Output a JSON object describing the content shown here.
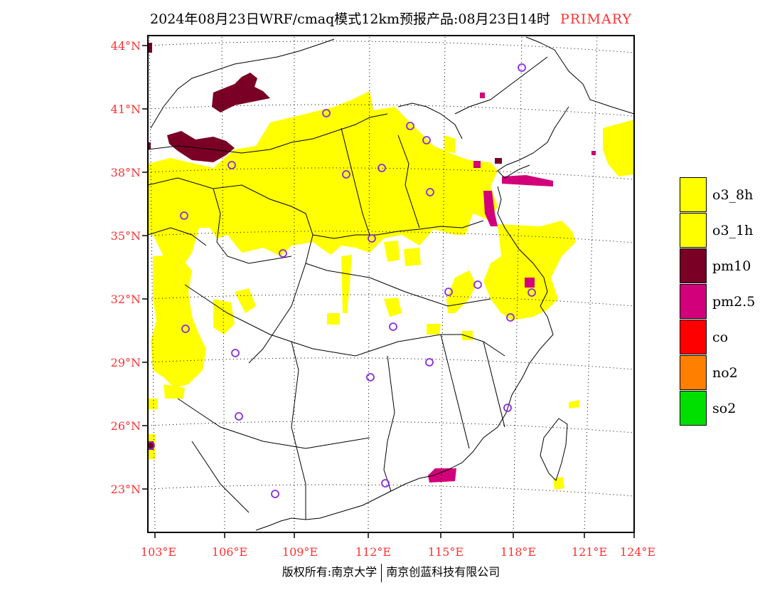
{
  "title": {
    "text": "2024年08月23日WRF/cmaq模式12km预报产品:08月23日14时",
    "tag": "PRIMARY"
  },
  "axes": {
    "lat_labels": [
      "44°N",
      "41°N",
      "38°N",
      "35°N",
      "32°N",
      "29°N",
      "26°N",
      "23°N"
    ],
    "lon_labels": [
      "103°E",
      "106°E",
      "109°E",
      "112°E",
      "115°E",
      "118°E",
      "121°E",
      "124°E"
    ]
  },
  "legend": {
    "items": [
      {
        "label": "o3_8h",
        "color": "#ffff00"
      },
      {
        "label": "o3_1h",
        "color": "#ffff00"
      },
      {
        "label": "pm10",
        "color": "#7a0026"
      },
      {
        "label": "pm2.5",
        "color": "#d2007a"
      },
      {
        "label": "co",
        "color": "#ff0000"
      },
      {
        "label": "no2",
        "color": "#ff7f00"
      },
      {
        "label": "so2",
        "color": "#00e000"
      }
    ]
  },
  "colors": {
    "ozone": "#ffff00",
    "pm10": "#7a0026",
    "pm25": "#d2007a",
    "station_marker": "#8a2be2",
    "axis_label": "#ff3030"
  },
  "copyright": {
    "left": "版权所有:南京大学",
    "right": "南京创蓝科技有限公司"
  }
}
